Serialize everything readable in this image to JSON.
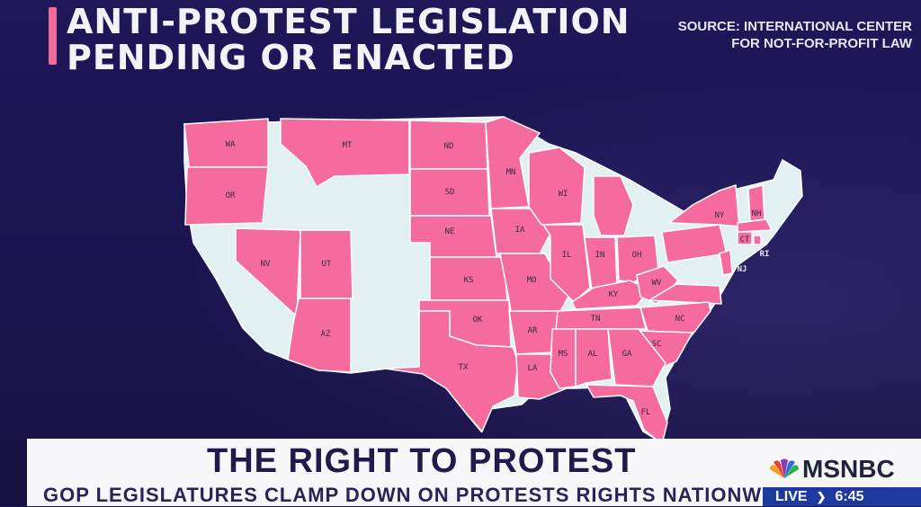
{
  "header": {
    "title_line1": "ANTI-PROTEST LEGISLATION",
    "title_line2": "PENDING OR ENACTED",
    "source_line1": "SOURCE: INTERNATIONAL CENTER",
    "source_line2": "FOR NOT-FOR-PROFIT LAW"
  },
  "map": {
    "highlight_color": "#f56b9e",
    "other_color": "#e2f0f1",
    "border_color": "#ffffff",
    "highlighted_states": [
      "WA",
      "OR",
      "MT",
      "ND",
      "SD",
      "NE",
      "KS",
      "OK",
      "TX",
      "MN",
      "IA",
      "MO",
      "AR",
      "LA",
      "WI",
      "IL",
      "IN",
      "MI",
      "OH",
      "KY",
      "TN",
      "MS",
      "AL",
      "GA",
      "FL",
      "SC",
      "NC",
      "WV",
      "VA",
      "PA",
      "NY",
      "NJ",
      "CT",
      "RI",
      "NH",
      "MA",
      "NV",
      "UT",
      "AZ"
    ],
    "labels": {
      "WA": "WA",
      "OR": "OR",
      "MT": "MT",
      "ND": "ND",
      "SD": "SD",
      "NE": "NE",
      "KS": "KS",
      "OK": "OK",
      "TX": "TX",
      "MN": "MN",
      "IA": "IA",
      "MO": "MO",
      "AR": "AR",
      "LA": "LA",
      "WI": "WI",
      "IL": "IL",
      "IN": "IN",
      "OH": "OH",
      "KY": "KY",
      "TN": "TN",
      "MS": "MS",
      "AL": "AL",
      "GA": "GA",
      "FL": "FL",
      "SC": "SC",
      "NC": "NC",
      "WV": "WV",
      "NY": "NY",
      "NH": "NH",
      "NV": "NV",
      "UT": "UT",
      "AZ": "AZ",
      "CT": "CT",
      "RI": "RI",
      "NJ": "NJ"
    }
  },
  "lower_third": {
    "headline": "THE RIGHT TO PROTEST",
    "subhead": "GOP LEGISLATURES CLAMP DOWN ON PROTESTS RIGHTS NATIONWIDE"
  },
  "network": {
    "name": "MSNBC",
    "live": "LIVE",
    "time": "6:45"
  }
}
